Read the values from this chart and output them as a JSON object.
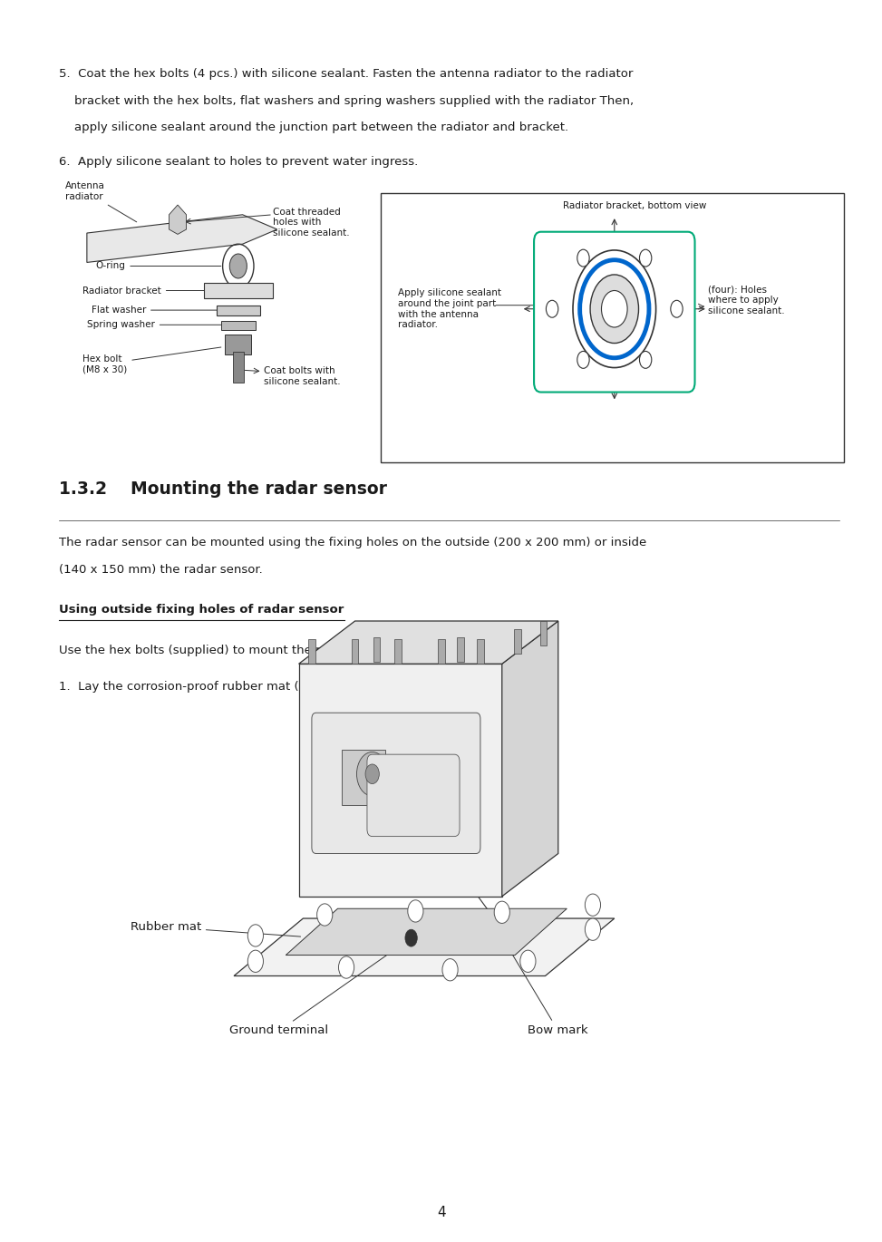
{
  "background_color": "#ffffff",
  "text_color": "#1a1a1a",
  "para5_line1": "5.  Coat the hex bolts (4 pcs.) with silicone sealant. Fasten the antenna radiator to the radiator",
  "para5_line2": "    bracket with the hex bolts, flat washers and spring washers supplied with the radiator Then,",
  "para5_line3": "    apply silicone sealant around the junction part between the radiator and bracket.",
  "para6": "6.  Apply silicone sealant to holes to prevent water ingress.",
  "section_title": "1.3.2    Mounting the radar sensor",
  "section_body1": "The radar sensor can be mounted using the fixing holes on the outside (200 x 200 mm) or inside",
  "section_body2": "(140 x 150 mm) the radar sensor.",
  "underline_heading": "Using outside fixing holes of radar sensor",
  "instruction1": "Use the hex bolts (supplied) to mount the radar sensor as below.",
  "instruction2": "1.  Lay the corrosion-proof rubber mat (supplied) on the mounting platform.",
  "label_rubber_mat": "Rubber mat",
  "label_ground_terminal": "Ground terminal",
  "label_bow_mark": "Bow mark",
  "page_number": "4",
  "lm": 0.058,
  "body_font": 9.5,
  "title_font": 13.5,
  "diag_label_font": 7.5,
  "diagram1_labels": {
    "antenna_radiator": "Antenna\nradiator",
    "oring": "O-ring",
    "radiator_bracket": "Radiator bracket",
    "flat_washer": "Flat washer",
    "spring_washer": "Spring washer",
    "hex_bolt": "Hex bolt\n(M8 x 30)",
    "coat_threaded": "Coat threaded\nholes with\nsilicone sealant.",
    "coat_bolts": "Coat bolts with\nsilicone sealant.",
    "radiator_bracket_bottom": "Radiator bracket, bottom view",
    "apply_sealant": "Apply silicone sealant\naround the joint part\nwith the antenna\nradiator.",
    "four_holes": "(four): Holes\nwhere to apply\nsilicone sealant."
  }
}
